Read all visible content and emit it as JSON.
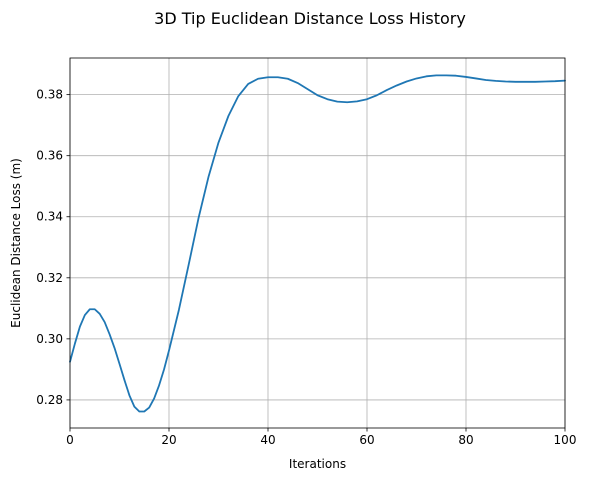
{
  "chart_data": {
    "type": "line",
    "title": "3D Tip Euclidean Distance Loss History",
    "xlabel": "Iterations",
    "ylabel": "Euclidean Distance Loss (m)",
    "xlim": [
      0,
      100
    ],
    "ylim": [
      0.2708,
      0.392
    ],
    "xticks": [
      0,
      20,
      40,
      60,
      80,
      100
    ],
    "yticks": [
      0.28,
      0.3,
      0.32,
      0.34,
      0.36,
      0.38
    ],
    "xtick_labels": [
      "0",
      "20",
      "40",
      "60",
      "80",
      "100"
    ],
    "ytick_labels": [
      "0.28",
      "0.30",
      "0.32",
      "0.34",
      "0.36",
      "0.38"
    ],
    "grid": true,
    "line_color": "#1f77b4",
    "grid_color": "#b0b0b0",
    "series": [
      {
        "x": [
          0,
          1,
          2,
          3,
          4,
          5,
          6,
          7,
          8,
          9,
          10,
          11,
          12,
          13,
          14,
          15,
          16,
          17,
          18,
          19,
          20,
          22,
          24,
          26,
          28,
          30,
          32,
          34,
          36,
          38,
          40,
          42,
          44,
          46,
          48,
          50,
          52,
          54,
          56,
          58,
          60,
          62,
          64,
          66,
          68,
          70,
          72,
          74,
          76,
          78,
          80,
          82,
          84,
          86,
          88,
          90,
          92,
          94,
          96,
          98,
          100
        ],
        "values": [
          0.2925,
          0.2985,
          0.304,
          0.3078,
          0.3097,
          0.3097,
          0.3082,
          0.3055,
          0.3015,
          0.297,
          0.2918,
          0.2865,
          0.2815,
          0.2778,
          0.2762,
          0.2762,
          0.2775,
          0.2805,
          0.2848,
          0.29,
          0.2962,
          0.3095,
          0.3245,
          0.3398,
          0.3532,
          0.3643,
          0.373,
          0.3795,
          0.3835,
          0.3852,
          0.3857,
          0.3857,
          0.3852,
          0.3838,
          0.3818,
          0.3798,
          0.3785,
          0.3777,
          0.3775,
          0.3778,
          0.3785,
          0.3798,
          0.3815,
          0.383,
          0.3843,
          0.3853,
          0.386,
          0.3863,
          0.3863,
          0.3862,
          0.3858,
          0.3853,
          0.3848,
          0.3845,
          0.3843,
          0.3842,
          0.3842,
          0.3842,
          0.3843,
          0.3844,
          0.3846
        ]
      }
    ]
  }
}
